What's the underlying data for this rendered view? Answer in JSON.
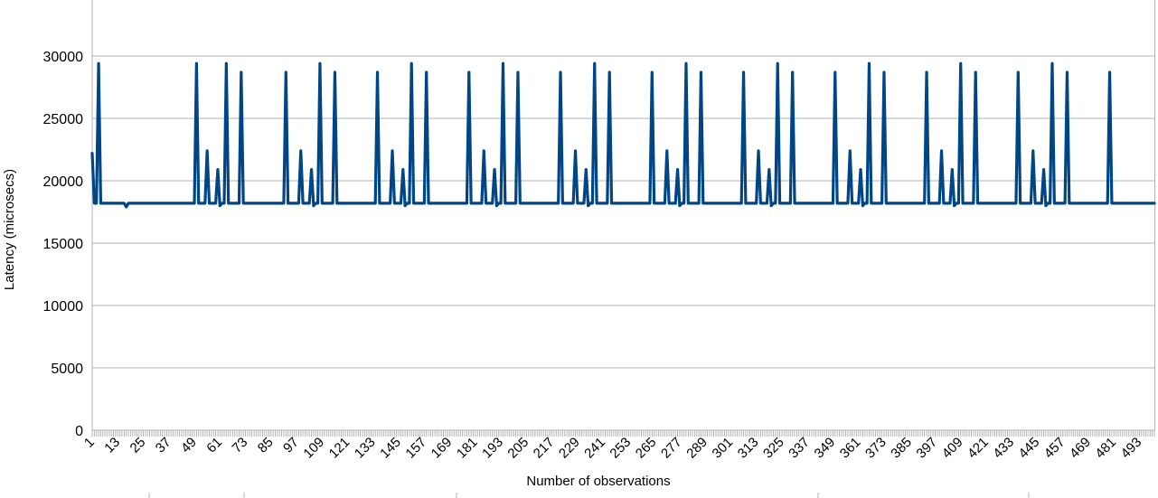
{
  "chart_data": {
    "type": "line",
    "title": "",
    "xlabel": "Number of observations",
    "ylabel": "Latency (microsecs)",
    "ylim": [
      0,
      30000
    ],
    "yticks": [
      0,
      5000,
      10000,
      15000,
      20000,
      25000,
      30000
    ],
    "xlim": [
      1,
      500
    ],
    "xticks": [
      1,
      13,
      25,
      37,
      49,
      61,
      73,
      85,
      97,
      109,
      121,
      133,
      145,
      157,
      169,
      181,
      193,
      205,
      217,
      229,
      241,
      253,
      265,
      277,
      289,
      301,
      313,
      325,
      337,
      349,
      361,
      373,
      385,
      397,
      409,
      421,
      433,
      445,
      457,
      469,
      481,
      493
    ],
    "grid": true,
    "legend": "none",
    "series": [
      {
        "color": "#004586",
        "baseline": 18200,
        "points": [
          [
            1,
            22200
          ],
          [
            2,
            18200
          ],
          [
            3,
            18200
          ],
          [
            4,
            29400
          ],
          [
            5,
            18200
          ],
          [
            16,
            18200
          ],
          [
            17,
            17900
          ],
          [
            18,
            18200
          ],
          [
            49,
            18200
          ],
          [
            50,
            29400
          ],
          [
            51,
            18200
          ],
          [
            54,
            18200
          ],
          [
            55,
            22400
          ],
          [
            56,
            18200
          ],
          [
            59,
            18200
          ],
          [
            60,
            20900
          ],
          [
            61,
            18000
          ],
          [
            62,
            18200
          ],
          [
            63,
            18200
          ],
          [
            64,
            29400
          ],
          [
            65,
            18200
          ],
          [
            70,
            18200
          ],
          [
            71,
            28700
          ],
          [
            72,
            18200
          ],
          [
            91,
            18200
          ],
          [
            92,
            28700
          ],
          [
            93,
            18200
          ],
          [
            98,
            18200
          ],
          [
            99,
            22400
          ],
          [
            100,
            18200
          ],
          [
            103,
            18200
          ],
          [
            104,
            20900
          ],
          [
            105,
            18000
          ],
          [
            106,
            18200
          ],
          [
            107,
            18200
          ],
          [
            108,
            29400
          ],
          [
            109,
            18200
          ],
          [
            114,
            18200
          ],
          [
            115,
            28700
          ],
          [
            116,
            18200
          ],
          [
            134,
            18200
          ],
          [
            135,
            28700
          ],
          [
            136,
            18200
          ],
          [
            141,
            18200
          ],
          [
            142,
            22400
          ],
          [
            143,
            18200
          ],
          [
            146,
            18200
          ],
          [
            147,
            20900
          ],
          [
            148,
            18000
          ],
          [
            149,
            18200
          ],
          [
            150,
            18200
          ],
          [
            151,
            29400
          ],
          [
            152,
            18200
          ],
          [
            157,
            18200
          ],
          [
            158,
            28700
          ],
          [
            159,
            18200
          ],
          [
            177,
            18200
          ],
          [
            178,
            28700
          ],
          [
            179,
            18200
          ],
          [
            184,
            18200
          ],
          [
            185,
            22400
          ],
          [
            186,
            18200
          ],
          [
            189,
            18200
          ],
          [
            190,
            20900
          ],
          [
            191,
            18000
          ],
          [
            192,
            18200
          ],
          [
            193,
            18200
          ],
          [
            194,
            29400
          ],
          [
            195,
            18200
          ],
          [
            200,
            18200
          ],
          [
            201,
            28700
          ],
          [
            202,
            18200
          ],
          [
            220,
            18200
          ],
          [
            221,
            28700
          ],
          [
            222,
            18200
          ],
          [
            227,
            18200
          ],
          [
            228,
            22400
          ],
          [
            229,
            18200
          ],
          [
            232,
            18200
          ],
          [
            233,
            20900
          ],
          [
            234,
            18000
          ],
          [
            235,
            18200
          ],
          [
            236,
            18200
          ],
          [
            237,
            29400
          ],
          [
            238,
            18200
          ],
          [
            243,
            18200
          ],
          [
            244,
            28700
          ],
          [
            245,
            18200
          ],
          [
            263,
            18200
          ],
          [
            264,
            28700
          ],
          [
            265,
            18200
          ],
          [
            270,
            18200
          ],
          [
            271,
            22400
          ],
          [
            272,
            18200
          ],
          [
            275,
            18200
          ],
          [
            276,
            20900
          ],
          [
            277,
            18000
          ],
          [
            278,
            18200
          ],
          [
            279,
            18200
          ],
          [
            280,
            29400
          ],
          [
            281,
            18200
          ],
          [
            286,
            18200
          ],
          [
            287,
            28700
          ],
          [
            288,
            18200
          ],
          [
            306,
            18200
          ],
          [
            307,
            28700
          ],
          [
            308,
            18200
          ],
          [
            313,
            18200
          ],
          [
            314,
            22400
          ],
          [
            315,
            18200
          ],
          [
            318,
            18200
          ],
          [
            319,
            20900
          ],
          [
            320,
            18000
          ],
          [
            321,
            18200
          ],
          [
            322,
            18200
          ],
          [
            323,
            29400
          ],
          [
            324,
            18200
          ],
          [
            329,
            18200
          ],
          [
            330,
            28700
          ],
          [
            331,
            18200
          ],
          [
            349,
            18200
          ],
          [
            350,
            28700
          ],
          [
            351,
            18200
          ],
          [
            356,
            18200
          ],
          [
            357,
            22400
          ],
          [
            358,
            18200
          ],
          [
            361,
            18200
          ],
          [
            362,
            20900
          ],
          [
            363,
            18000
          ],
          [
            364,
            18200
          ],
          [
            365,
            18200
          ],
          [
            366,
            29400
          ],
          [
            367,
            18200
          ],
          [
            372,
            18200
          ],
          [
            373,
            28700
          ],
          [
            374,
            18200
          ],
          [
            392,
            18200
          ],
          [
            393,
            28700
          ],
          [
            394,
            18200
          ],
          [
            399,
            18200
          ],
          [
            400,
            22400
          ],
          [
            401,
            18200
          ],
          [
            404,
            18200
          ],
          [
            405,
            20900
          ],
          [
            406,
            18000
          ],
          [
            407,
            18200
          ],
          [
            408,
            18200
          ],
          [
            409,
            29400
          ],
          [
            410,
            18200
          ],
          [
            415,
            18200
          ],
          [
            416,
            28700
          ],
          [
            417,
            18200
          ],
          [
            435,
            18200
          ],
          [
            436,
            28700
          ],
          [
            437,
            18200
          ],
          [
            442,
            18200
          ],
          [
            443,
            22400
          ],
          [
            444,
            18200
          ],
          [
            447,
            18200
          ],
          [
            448,
            20900
          ],
          [
            449,
            18000
          ],
          [
            450,
            18200
          ],
          [
            451,
            18200
          ],
          [
            452,
            29400
          ],
          [
            453,
            18200
          ],
          [
            458,
            18200
          ],
          [
            459,
            28700
          ],
          [
            460,
            18200
          ],
          [
            478,
            18200
          ],
          [
            479,
            28700
          ],
          [
            480,
            18200
          ],
          [
            500,
            18200
          ]
        ]
      }
    ]
  }
}
